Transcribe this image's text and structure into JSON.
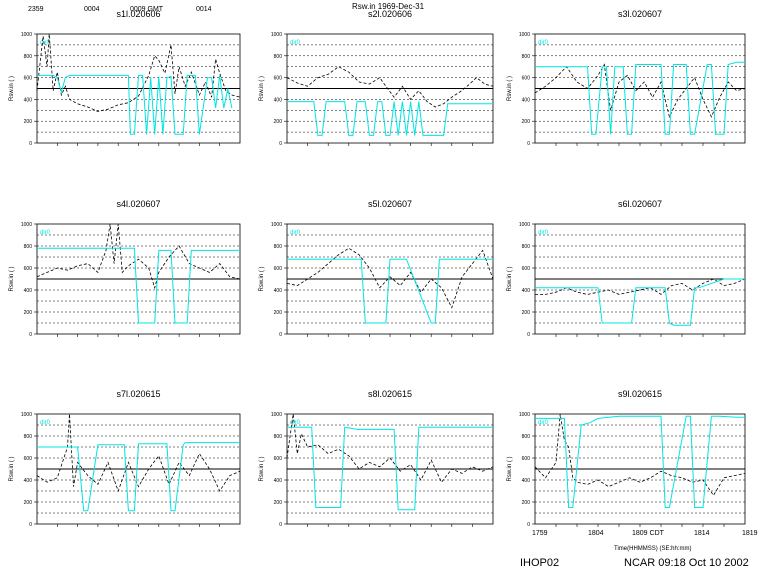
{
  "page": {
    "title": "Rsw.in 1969-Dec-31",
    "top_time_labels": [
      "2359",
      "0004",
      "0009 GMT",
      "0014"
    ],
    "bottom_axis": {
      "ticks": [
        "1759",
        "1804",
        "1809 CDT",
        "1814",
        "1819"
      ],
      "label": "Time(HHMMSS) (SE:hh:mm)"
    },
    "footer_left": "IHOP02",
    "footer_right": "NCAR 09:18 Oct 10 2002"
  },
  "colors": {
    "dashed": "#000000",
    "cyan": "#00e5e5",
    "grid": "#000000",
    "ref_line": "#000000"
  },
  "chart_data": [
    {
      "type": "line",
      "title": "s1l.020606",
      "ylabel": "Rsw.in ( )",
      "legend": "dir0",
      "ylim": [
        0,
        1000
      ],
      "yticks": [
        0,
        200,
        400,
        600,
        800,
        1000
      ],
      "ref_line": 500,
      "grid": true,
      "series": [
        {
          "name": "dashed",
          "style": "dashed",
          "x": [
            0,
            3,
            5,
            6,
            8,
            10,
            12,
            14,
            16,
            20,
            25,
            30,
            35,
            40,
            45,
            50,
            55,
            58,
            60,
            63,
            66,
            68,
            70,
            73,
            76,
            80,
            83,
            86,
            88,
            90,
            93,
            96,
            100
          ],
          "values": [
            480,
            980,
            700,
            1000,
            480,
            650,
            440,
            520,
            400,
            360,
            330,
            290,
            310,
            350,
            370,
            430,
            620,
            800,
            760,
            640,
            900,
            450,
            700,
            520,
            650,
            440,
            560,
            420,
            770,
            640,
            480,
            440,
            420
          ]
        },
        {
          "name": "cyan",
          "style": "solid",
          "x": [
            0,
            8,
            10,
            12,
            14,
            16,
            45,
            46,
            48,
            50,
            52,
            54,
            56,
            58,
            60,
            62,
            64,
            66,
            68,
            72,
            74,
            78,
            80,
            84,
            86,
            88,
            90,
            92,
            94,
            96
          ],
          "values": [
            620,
            620,
            600,
            470,
            600,
            620,
            620,
            80,
            80,
            620,
            620,
            80,
            600,
            80,
            610,
            80,
            600,
            610,
            80,
            80,
            620,
            620,
            80,
            600,
            600,
            320,
            620,
            320,
            500,
            320
          ]
        }
      ]
    },
    {
      "type": "line",
      "title": "s2l.020606",
      "ylabel": "Rsw.in ( )",
      "legend": "dir0",
      "ylim": [
        0,
        1000
      ],
      "yticks": [
        0,
        200,
        400,
        600,
        800,
        1000
      ],
      "ref_line": 500,
      "grid": true,
      "series": [
        {
          "name": "dashed",
          "style": "dashed",
          "x": [
            0,
            5,
            10,
            15,
            20,
            25,
            30,
            35,
            40,
            45,
            48,
            52,
            56,
            60,
            64,
            68,
            72,
            76,
            80,
            84,
            88,
            92,
            96,
            100
          ],
          "values": [
            600,
            550,
            520,
            600,
            630,
            700,
            650,
            560,
            540,
            600,
            520,
            420,
            520,
            400,
            480,
            380,
            330,
            360,
            420,
            470,
            530,
            600,
            540,
            520
          ]
        },
        {
          "name": "cyan",
          "style": "solid",
          "x": [
            0,
            12,
            13,
            15,
            17,
            19,
            27,
            28,
            30,
            32,
            34,
            38,
            40,
            42,
            44,
            46,
            48,
            50,
            52,
            54,
            56,
            58,
            60,
            62,
            64,
            66,
            74,
            76,
            78,
            100
          ],
          "values": [
            380,
            380,
            380,
            70,
            70,
            380,
            380,
            380,
            70,
            70,
            380,
            380,
            70,
            70,
            380,
            380,
            70,
            70,
            380,
            70,
            380,
            70,
            380,
            70,
            380,
            70,
            70,
            70,
            360,
            360
          ]
        }
      ]
    },
    {
      "type": "line",
      "title": "s3l.020607",
      "ylabel": "Rsw.in ( )",
      "legend": "dir0",
      "ylim": [
        0,
        1000
      ],
      "yticks": [
        0,
        200,
        400,
        600,
        800,
        1000
      ],
      "ref_line": 500,
      "grid": true,
      "series": [
        {
          "name": "dashed",
          "style": "dashed",
          "x": [
            0,
            5,
            10,
            15,
            20,
            25,
            30,
            33,
            36,
            40,
            44,
            48,
            52,
            56,
            60,
            64,
            68,
            72,
            76,
            80,
            84,
            88,
            92,
            96,
            100
          ],
          "values": [
            460,
            520,
            600,
            700,
            560,
            500,
            620,
            720,
            300,
            560,
            620,
            480,
            560,
            420,
            560,
            240,
            400,
            500,
            600,
            400,
            240,
            420,
            560,
            480,
            500
          ]
        },
        {
          "name": "cyan",
          "style": "solid",
          "x": [
            0,
            25,
            27,
            29,
            32,
            34,
            36,
            38,
            42,
            44,
            46,
            48,
            50,
            52,
            60,
            62,
            64,
            66,
            72,
            74,
            76,
            82,
            84,
            86,
            90,
            92,
            96,
            100
          ],
          "values": [
            700,
            700,
            80,
            80,
            700,
            700,
            80,
            700,
            700,
            80,
            80,
            720,
            720,
            720,
            720,
            80,
            80,
            720,
            720,
            80,
            80,
            720,
            720,
            80,
            80,
            720,
            740,
            740
          ]
        }
      ]
    },
    {
      "type": "line",
      "title": "s4l.020607",
      "ylabel": "Rsw.in ( )",
      "legend": "dir0",
      "ylim": [
        0,
        1000
      ],
      "yticks": [
        0,
        200,
        400,
        600,
        800,
        1000
      ],
      "ref_line": 500,
      "grid": true,
      "series": [
        {
          "name": "dashed",
          "style": "dashed",
          "x": [
            0,
            5,
            10,
            15,
            20,
            25,
            30,
            34,
            36,
            38,
            40,
            42,
            45,
            50,
            55,
            58,
            60,
            65,
            70,
            75,
            80,
            85,
            90,
            95,
            100
          ],
          "values": [
            520,
            560,
            600,
            580,
            620,
            640,
            560,
            760,
            1000,
            640,
            1000,
            560,
            620,
            680,
            600,
            420,
            560,
            700,
            800,
            640,
            600,
            560,
            640,
            520,
            500
          ]
        },
        {
          "name": "cyan",
          "style": "solid",
          "x": [
            0,
            28,
            30,
            34,
            36,
            48,
            50,
            52,
            58,
            60,
            66,
            68,
            74,
            76,
            82,
            84,
            100
          ],
          "values": [
            780,
            780,
            780,
            780,
            780,
            780,
            100,
            100,
            100,
            760,
            760,
            100,
            100,
            760,
            760,
            760,
            760
          ]
        }
      ]
    },
    {
      "type": "line",
      "title": "s5l.020607",
      "ylabel": "Rsw.in ( )",
      "legend": "dir0",
      "ylim": [
        0,
        1000
      ],
      "yticks": [
        0,
        200,
        400,
        600,
        800,
        1000
      ],
      "ref_line": 500,
      "grid": true,
      "series": [
        {
          "name": "dashed",
          "style": "dashed",
          "x": [
            0,
            5,
            10,
            15,
            20,
            25,
            30,
            35,
            40,
            45,
            50,
            55,
            60,
            65,
            70,
            75,
            80,
            85,
            90,
            95,
            100
          ],
          "values": [
            460,
            440,
            500,
            560,
            640,
            720,
            780,
            720,
            600,
            420,
            520,
            440,
            560,
            380,
            500,
            420,
            240,
            520,
            640,
            760,
            500
          ]
        },
        {
          "name": "cyan",
          "style": "solid",
          "x": [
            0,
            18,
            20,
            22,
            36,
            38,
            40,
            48,
            50,
            54,
            58,
            70,
            72,
            74,
            84,
            86,
            100
          ],
          "values": [
            680,
            680,
            680,
            680,
            680,
            100,
            100,
            100,
            680,
            680,
            680,
            100,
            100,
            680,
            680,
            680,
            680
          ]
        }
      ]
    },
    {
      "type": "line",
      "title": "s6l.020607",
      "ylabel": "Rsw.in ( )",
      "legend": "dir0",
      "ylim": [
        0,
        1000
      ],
      "yticks": [
        0,
        200,
        400,
        600,
        800,
        1000
      ],
      "ref_line": 500,
      "grid": true,
      "series": [
        {
          "name": "dashed",
          "style": "dashed",
          "x": [
            0,
            5,
            10,
            15,
            20,
            25,
            30,
            35,
            40,
            45,
            50,
            55,
            60,
            65,
            70,
            75,
            80,
            85,
            90,
            95,
            100
          ],
          "values": [
            360,
            360,
            380,
            420,
            380,
            360,
            380,
            400,
            360,
            380,
            400,
            420,
            360,
            440,
            460,
            400,
            460,
            500,
            440,
            460,
            500
          ]
        },
        {
          "name": "cyan",
          "style": "solid",
          "x": [
            0,
            26,
            28,
            30,
            32,
            46,
            48,
            60,
            62,
            64,
            66,
            74,
            76,
            78,
            90,
            100
          ],
          "values": [
            420,
            420,
            420,
            420,
            100,
            100,
            420,
            420,
            420,
            100,
            80,
            80,
            420,
            420,
            500,
            500
          ]
        }
      ]
    },
    {
      "type": "line",
      "title": "s7l.020615",
      "ylabel": "Rsw.in ( )",
      "legend": "dir0",
      "ylim": [
        0,
        1000
      ],
      "yticks": [
        0,
        200,
        400,
        600,
        800,
        1000
      ],
      "ref_line": 500,
      "grid": true,
      "series": [
        {
          "name": "dashed",
          "style": "dashed",
          "x": [
            0,
            5,
            10,
            15,
            16,
            18,
            20,
            25,
            30,
            35,
            40,
            45,
            50,
            55,
            60,
            65,
            70,
            75,
            80,
            85,
            90,
            95,
            100
          ],
          "values": [
            440,
            380,
            420,
            700,
            1000,
            340,
            560,
            440,
            360,
            560,
            300,
            560,
            340,
            500,
            620,
            360,
            560,
            440,
            640,
            500,
            300,
            440,
            480
          ]
        },
        {
          "name": "cyan",
          "style": "solid",
          "x": [
            0,
            16,
            18,
            20,
            23,
            25,
            30,
            32,
            43,
            45,
            48,
            50,
            62,
            64,
            66,
            68,
            72,
            73,
            100
          ],
          "values": [
            700,
            700,
            700,
            700,
            120,
            120,
            720,
            720,
            720,
            120,
            120,
            730,
            730,
            730,
            120,
            120,
            720,
            740,
            740
          ]
        }
      ]
    },
    {
      "type": "line",
      "title": "s8l.020615",
      "ylabel": "Rsw.in ( )",
      "legend": "dir0",
      "ylim": [
        0,
        1000
      ],
      "yticks": [
        0,
        200,
        400,
        600,
        800,
        1000
      ],
      "ref_line": 500,
      "grid": true,
      "series": [
        {
          "name": "dashed",
          "style": "dashed",
          "x": [
            0,
            3,
            5,
            7,
            10,
            15,
            20,
            25,
            30,
            35,
            40,
            45,
            50,
            55,
            60,
            65,
            70,
            75,
            80,
            85,
            90,
            95,
            100
          ],
          "values": [
            600,
            1000,
            640,
            820,
            700,
            720,
            640,
            680,
            620,
            500,
            560,
            520,
            600,
            480,
            540,
            400,
            580,
            380,
            500,
            460,
            520,
            480,
            520
          ]
        },
        {
          "name": "cyan",
          "style": "solid",
          "x": [
            0,
            8,
            10,
            12,
            14,
            26,
            28,
            34,
            36,
            52,
            54,
            62,
            64,
            66,
            68,
            100
          ],
          "values": [
            880,
            880,
            880,
            880,
            150,
            150,
            880,
            860,
            860,
            860,
            130,
            130,
            880,
            880,
            880,
            880
          ]
        }
      ]
    },
    {
      "type": "line",
      "title": "s9l.020615",
      "ylabel": "Rsw.in ( )",
      "legend": "dir0",
      "ylim": [
        0,
        1000
      ],
      "yticks": [
        0,
        200,
        400,
        600,
        800,
        1000
      ],
      "ref_line": 500,
      "grid": true,
      "series": [
        {
          "name": "dashed",
          "style": "dashed",
          "x": [
            0,
            5,
            10,
            12,
            14,
            16,
            18,
            20,
            25,
            30,
            35,
            40,
            45,
            50,
            55,
            60,
            65,
            70,
            75,
            80,
            85,
            90,
            95,
            100
          ],
          "values": [
            520,
            420,
            560,
            1000,
            760,
            700,
            420,
            380,
            360,
            400,
            340,
            380,
            420,
            380,
            420,
            480,
            440,
            420,
            380,
            400,
            260,
            420,
            440,
            460
          ]
        },
        {
          "name": "cyan",
          "style": "solid",
          "x": [
            0,
            10,
            12,
            14,
            16,
            18,
            22,
            26,
            30,
            40,
            50,
            60,
            62,
            64,
            72,
            74,
            76,
            80,
            84,
            88,
            96,
            100
          ],
          "values": [
            960,
            960,
            960,
            960,
            150,
            150,
            900,
            920,
            960,
            980,
            980,
            980,
            150,
            150,
            980,
            980,
            150,
            150,
            980,
            980,
            970,
            970
          ]
        }
      ]
    }
  ]
}
